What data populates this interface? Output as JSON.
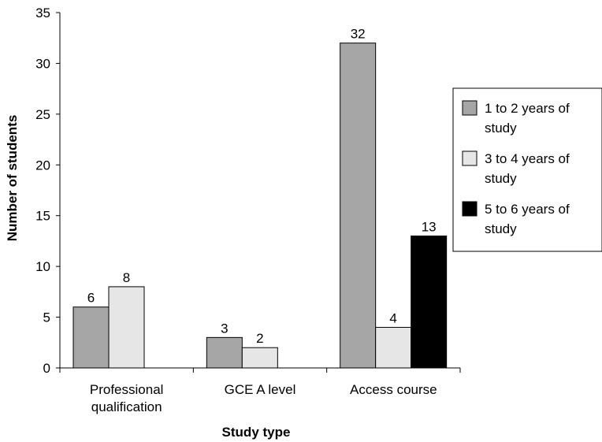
{
  "chart_data": {
    "type": "bar",
    "categories": [
      "Professional qualification",
      "GCE A level",
      "Access course"
    ],
    "category_lines": [
      [
        "Professional",
        "qualification"
      ],
      [
        "GCE A level"
      ],
      [
        "Access course"
      ]
    ],
    "series": [
      {
        "name": "1 to 2 years of study",
        "name_lines": [
          "1 to 2 years of",
          "study"
        ],
        "color": "#a6a6a6",
        "values": [
          6,
          3,
          32
        ]
      },
      {
        "name": "3 to 4 years of study",
        "name_lines": [
          "3 to 4 years of",
          "study"
        ],
        "color": "#e6e6e6",
        "values": [
          8,
          2,
          4
        ]
      },
      {
        "name": "5 to 6 years of study",
        "name_lines": [
          "5 to 6 years of",
          "study"
        ],
        "color": "#000000",
        "values": [
          null,
          null,
          13
        ]
      }
    ],
    "xlabel": "Study type",
    "ylabel": "Number of students",
    "ylim": [
      0,
      35
    ],
    "yticks": [
      0,
      5,
      10,
      15,
      20,
      25,
      30,
      35
    ],
    "grid": false,
    "legend_position": "right"
  }
}
